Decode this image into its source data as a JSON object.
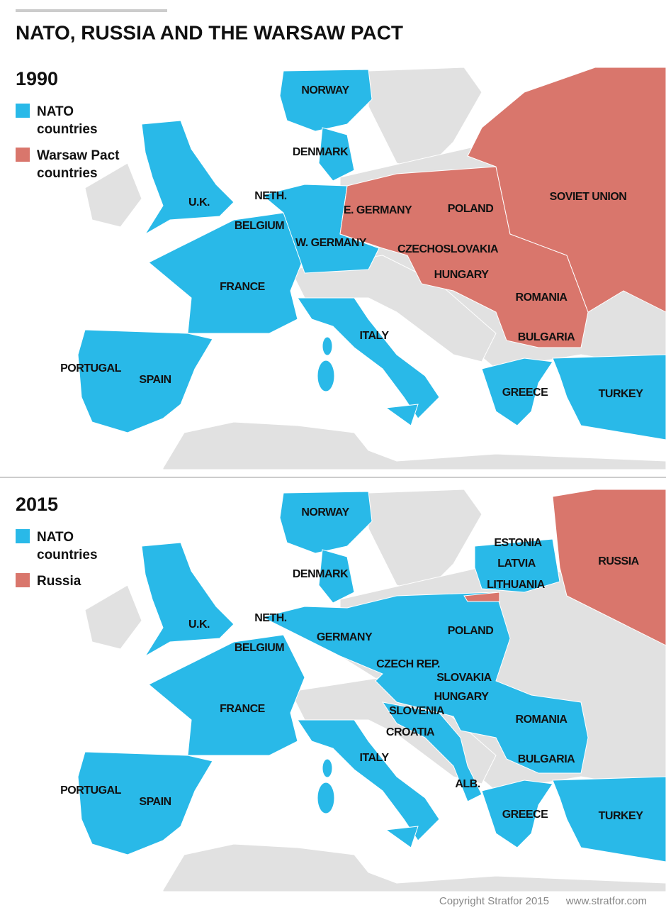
{
  "title": "NATO, RUSSIA AND THE WARSAW PACT",
  "maps": [
    {
      "year": "1990",
      "legend": [
        {
          "label": "NATO countries",
          "color": "#29b9e8"
        },
        {
          "label": "Warsaw Pact countries",
          "color": "#d9766c"
        }
      ],
      "labels": [
        "NORWAY",
        "DENMARK",
        "NETH.",
        "U.K.",
        "BELGIUM",
        "E. GERMANY",
        "POLAND",
        "SOVIET UNION",
        "W. GERMANY",
        "CZECHOSLOVAKIA",
        "HUNGARY",
        "FRANCE",
        "ROMANIA",
        "ITALY",
        "BULGARIA",
        "PORTUGAL",
        "SPAIN",
        "GREECE",
        "TURKEY"
      ]
    },
    {
      "year": "2015",
      "legend": [
        {
          "label": "NATO countries",
          "color": "#29b9e8"
        },
        {
          "label": "Russia",
          "color": "#d9766c"
        }
      ],
      "labels": [
        "NORWAY",
        "ESTONIA",
        "RUSSIA",
        "LATVIA",
        "DENMARK",
        "LITHUANIA",
        "NETH.",
        "U.K.",
        "POLAND",
        "GERMANY",
        "BELGIUM",
        "CZECH REP.",
        "SLOVAKIA",
        "HUNGARY",
        "FRANCE",
        "SLOVENIA",
        "ROMANIA",
        "CROATIA",
        "ITALY",
        "BULGARIA",
        "ALB.",
        "PORTUGAL",
        "SPAIN",
        "GREECE",
        "TURKEY"
      ]
    }
  ],
  "copyright": "Copyright Stratfor 2015",
  "url": "www.stratfor.com"
}
